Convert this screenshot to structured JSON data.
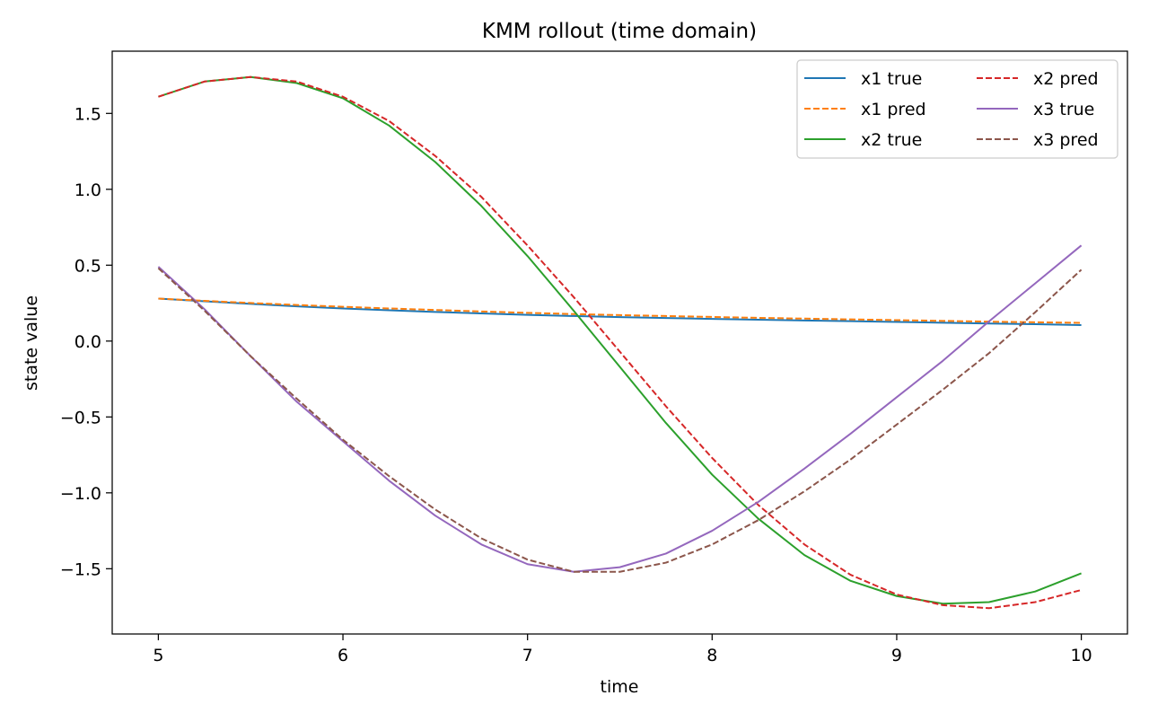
{
  "chart_data": {
    "type": "line",
    "title": "KMM rollout (time domain)",
    "xlabel": "time",
    "ylabel": "state value",
    "xlim": [
      4.75,
      10.25
    ],
    "ylim": [
      -1.93,
      1.91
    ],
    "xticks": [
      5,
      6,
      7,
      8,
      9,
      10
    ],
    "yticks": [
      -1.5,
      -1.0,
      -0.5,
      0.0,
      0.5,
      1.0,
      1.5
    ],
    "xtick_labels": [
      "5",
      "6",
      "7",
      "8",
      "9",
      "10"
    ],
    "ytick_labels": [
      "−1.5",
      "−1.0",
      "−0.5",
      "0.0",
      "0.5",
      "1.0",
      "1.5"
    ],
    "grid": false,
    "legend": {
      "placement": "top-right",
      "columns": 2
    },
    "x": [
      5.0,
      5.25,
      5.5,
      5.75,
      6.0,
      6.25,
      6.5,
      6.75,
      7.0,
      7.25,
      7.5,
      7.75,
      8.0,
      8.25,
      8.5,
      8.75,
      9.0,
      9.25,
      9.5,
      9.75,
      10.0
    ],
    "series": [
      {
        "name": "x1 true",
        "color": "#1f77b4",
        "dash": "solid",
        "values": [
          0.28,
          0.262,
          0.245,
          0.229,
          0.215,
          0.203,
          0.192,
          0.182,
          0.173,
          0.165,
          0.158,
          0.152,
          0.146,
          0.141,
          0.136,
          0.131,
          0.126,
          0.121,
          0.116,
          0.111,
          0.105
        ]
      },
      {
        "name": "x1 pred",
        "color": "#ff7f0e",
        "dash": "dashed",
        "values": [
          0.28,
          0.265,
          0.251,
          0.238,
          0.226,
          0.215,
          0.205,
          0.195,
          0.186,
          0.178,
          0.171,
          0.165,
          0.159,
          0.153,
          0.148,
          0.143,
          0.138,
          0.133,
          0.128,
          0.124,
          0.12
        ]
      },
      {
        "name": "x2 true",
        "color": "#2ca02c",
        "dash": "solid",
        "values": [
          1.61,
          1.71,
          1.74,
          1.7,
          1.6,
          1.42,
          1.18,
          0.89,
          0.56,
          0.2,
          -0.17,
          -0.54,
          -0.88,
          -1.17,
          -1.41,
          -1.58,
          -1.68,
          -1.73,
          -1.72,
          -1.65,
          -1.53
        ]
      },
      {
        "name": "x2 pred",
        "color": "#d62728",
        "dash": "dashed",
        "values": [
          1.61,
          1.71,
          1.74,
          1.71,
          1.61,
          1.45,
          1.22,
          0.95,
          0.63,
          0.29,
          -0.07,
          -0.43,
          -0.77,
          -1.08,
          -1.34,
          -1.54,
          -1.67,
          -1.74,
          -1.76,
          -1.72,
          -1.64
        ]
      },
      {
        "name": "x3 true",
        "color": "#9467bd",
        "dash": "solid",
        "values": [
          0.49,
          0.21,
          -0.1,
          -0.4,
          -0.66,
          -0.92,
          -1.15,
          -1.34,
          -1.47,
          -1.52,
          -1.49,
          -1.4,
          -1.25,
          -1.06,
          -0.84,
          -0.61,
          -0.37,
          -0.13,
          0.13,
          0.38,
          0.63
        ]
      },
      {
        "name": "x3 pred",
        "color": "#8c564b",
        "dash": "dashed",
        "values": [
          0.48,
          0.2,
          -0.1,
          -0.38,
          -0.65,
          -0.89,
          -1.11,
          -1.3,
          -1.44,
          -1.52,
          -1.52,
          -1.46,
          -1.34,
          -1.18,
          -0.99,
          -0.78,
          -0.55,
          -0.32,
          -0.08,
          0.19,
          0.47
        ]
      }
    ]
  }
}
